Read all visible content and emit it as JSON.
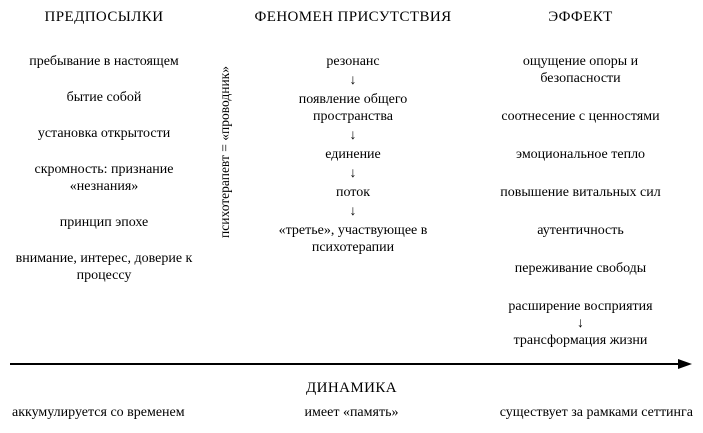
{
  "glyphs": {
    "down_arrow": "↓"
  },
  "columns": [
    {
      "header": "ПРЕДПОСЫЛКИ",
      "items": [
        "пребывание в настоящем",
        "бытие собой",
        "установка открытости",
        "скромность: признание «незнания»",
        "принцип эпохе",
        "внимание, интерес, доверие к процессу"
      ]
    },
    {
      "header": "ФЕНОМЕН ПРИСУТСТВИЯ",
      "items": [
        "резонанс",
        "появление общего пространства",
        "единение",
        "поток",
        "«третье», участвующее в психотерапии"
      ]
    },
    {
      "header": "ЭФФЕКТ",
      "items": [
        "ощущение опоры и безопасности",
        "соотнесение с ценностями",
        "эмоциональное тепло",
        "повышение витальных сил",
        "аутентичность",
        "переживание свободы",
        "расширение восприятия",
        "трансформация жизни"
      ]
    }
  ],
  "mediator_label": "психотерапевт = «проводник»",
  "dynamics": {
    "title": "ДИНАМИКА",
    "items": [
      "аккумулируется со временем",
      "имеет «память»",
      "существует за рамками сеттинга"
    ]
  }
}
